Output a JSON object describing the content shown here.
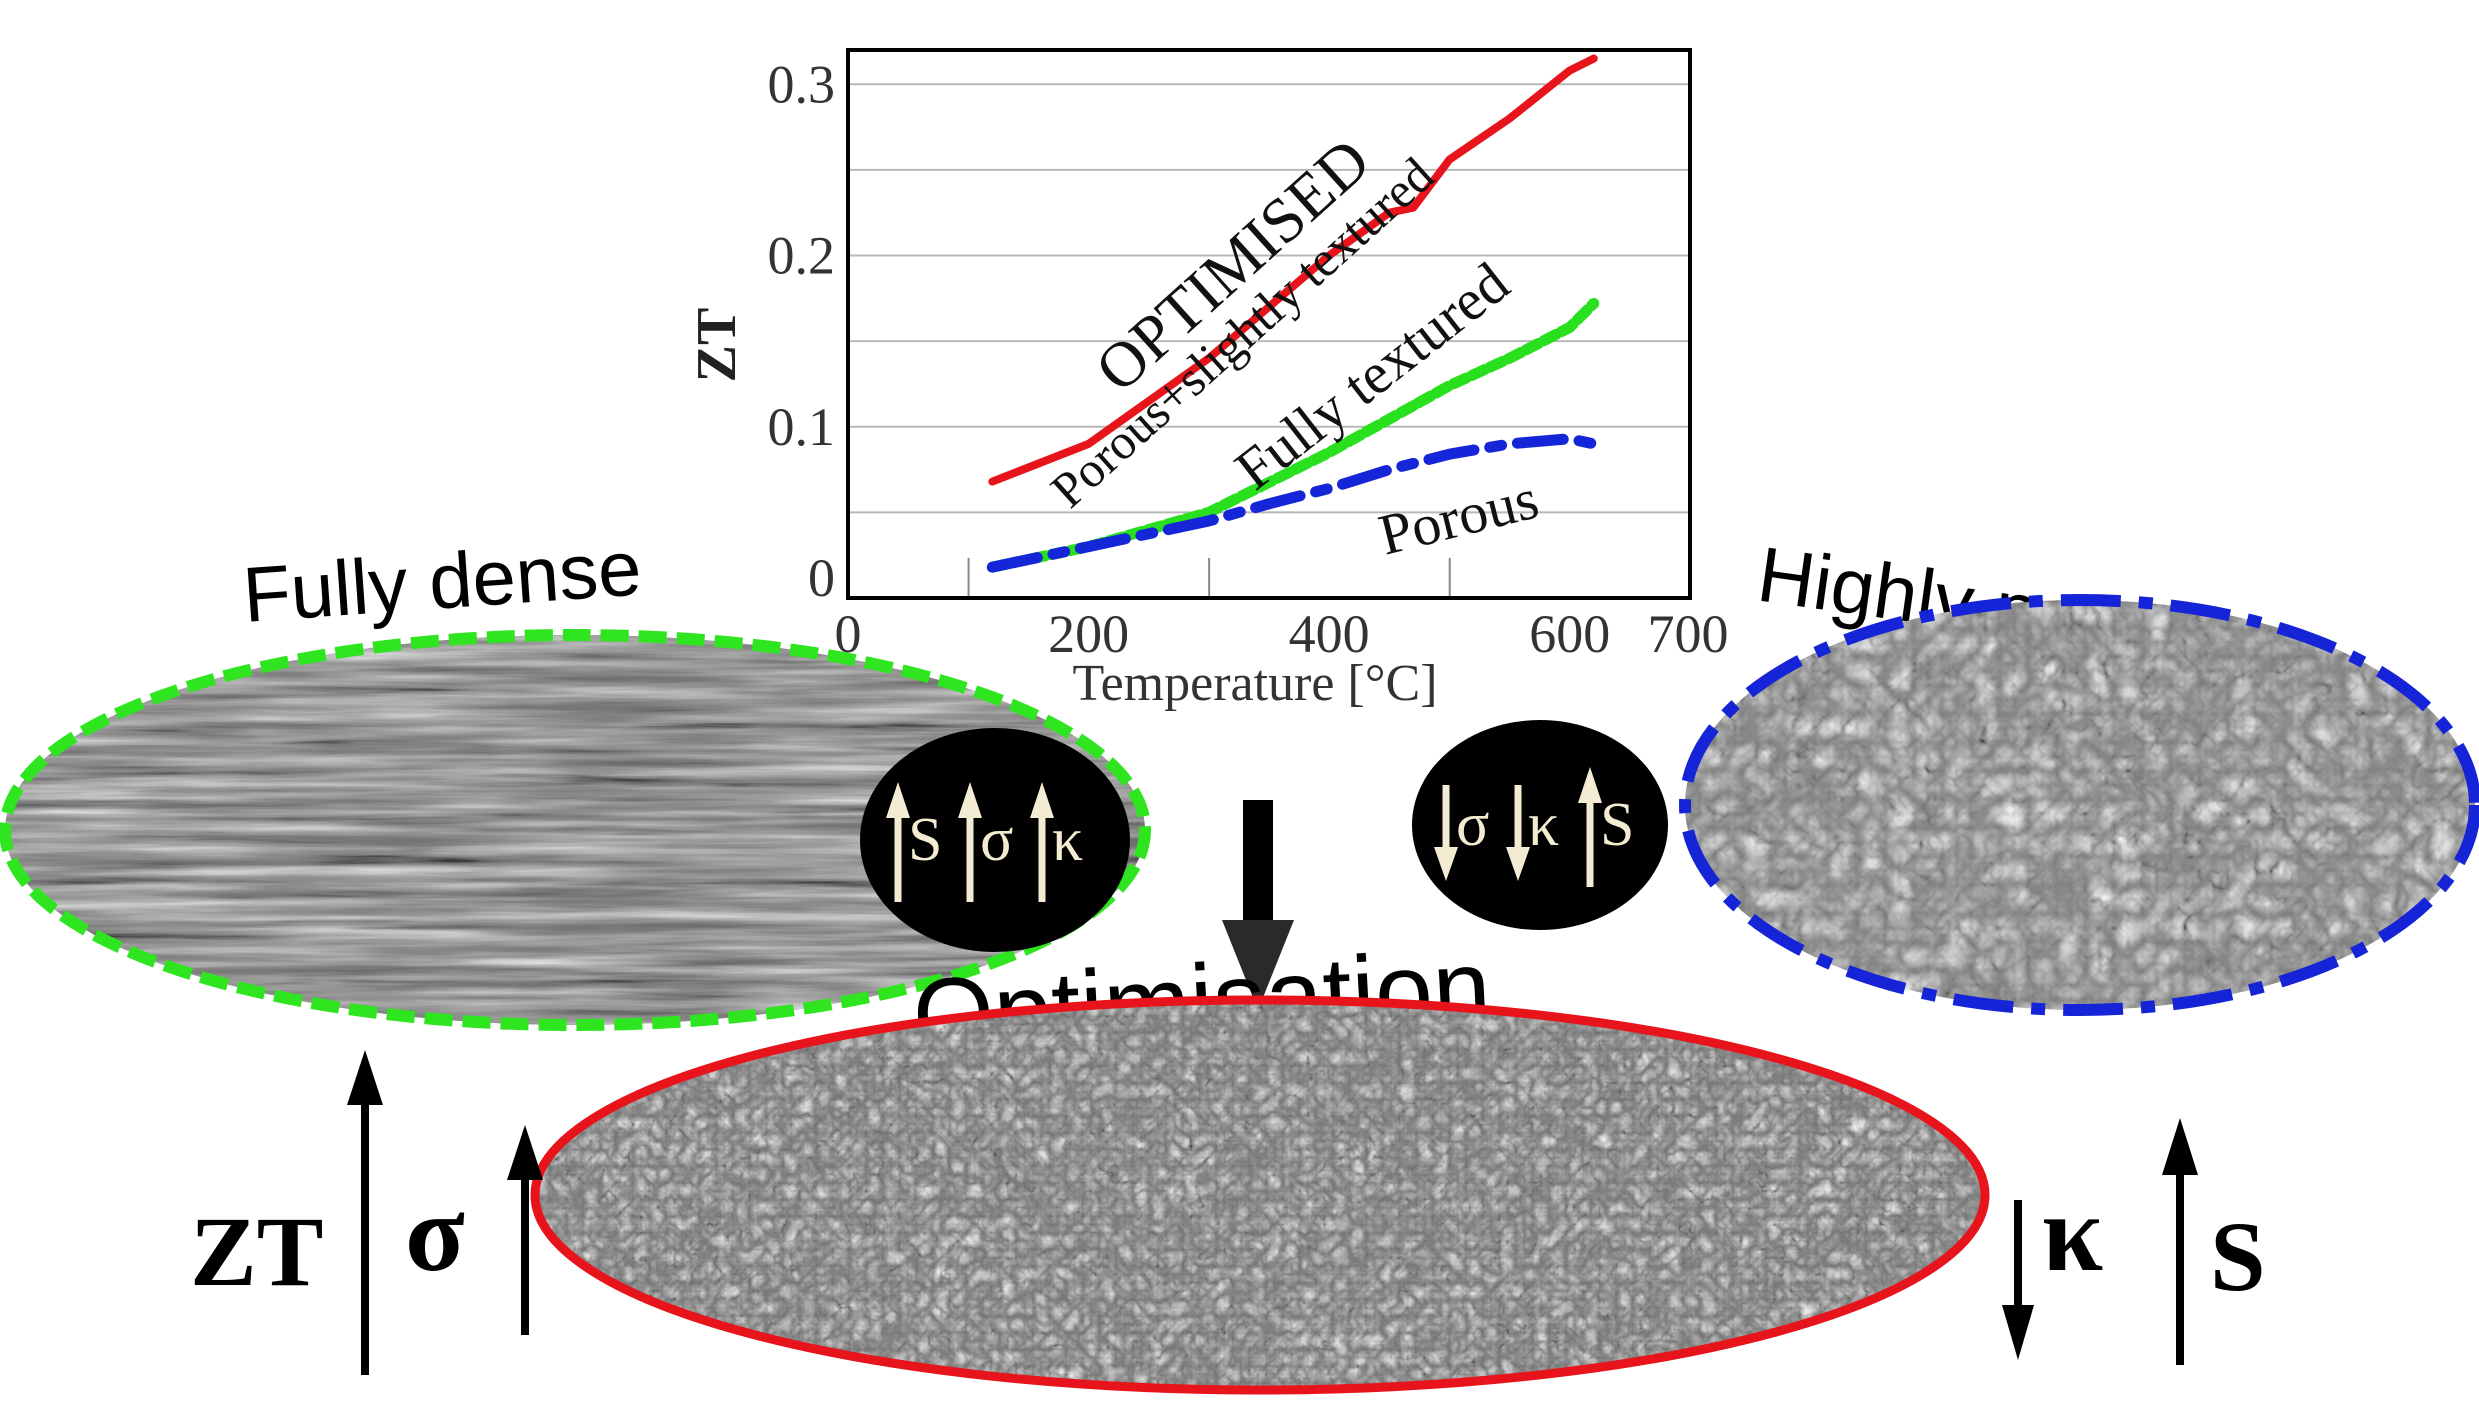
{
  "chart_data": {
    "type": "line",
    "xlabel": "Temperature [°C]",
    "ylabel": "ZT",
    "xlim": [
      0,
      700
    ],
    "ylim": [
      0,
      0.32
    ],
    "x_ticks": [
      "0",
      "200",
      "400",
      "600",
      "700"
    ],
    "y_ticks": [
      "0",
      "0.1",
      "0.2",
      "0.3"
    ],
    "grid": "horizontal",
    "series": [
      {
        "name": "OPTIMISED Porous+slightly textured",
        "color": "#e8141b",
        "style": "solid",
        "x": [
          120,
          200,
          300,
          350,
          400,
          450,
          470,
          500,
          550,
          600,
          620
        ],
        "y": [
          0.068,
          0.09,
          0.14,
          0.17,
          0.2,
          0.225,
          0.228,
          0.256,
          0.28,
          0.308,
          0.315
        ]
      },
      {
        "name": "Fully textured",
        "color": "#28e01e",
        "style": "dashed",
        "x": [
          120,
          200,
          300,
          400,
          500,
          550,
          600,
          620
        ],
        "y": [
          0.018,
          0.03,
          0.05,
          0.085,
          0.124,
          0.14,
          0.158,
          0.172
        ]
      },
      {
        "name": "Porous",
        "color": "#1525d8",
        "style": "dash-dot",
        "x": [
          120,
          200,
          300,
          350,
          400,
          450,
          500,
          550,
          600,
          620
        ],
        "y": [
          0.018,
          0.03,
          0.045,
          0.055,
          0.064,
          0.075,
          0.084,
          0.09,
          0.093,
          0.09
        ]
      }
    ],
    "annotations": [
      "OPTIMISED",
      "Porous+slightly textured",
      "Fully textured",
      "Porous"
    ]
  },
  "samples": {
    "fully_dense": {
      "title": "Fully dense",
      "border_color": "#2fe51f",
      "badge": [
        "S",
        "σ",
        "κ"
      ],
      "badge_arrows": [
        "up",
        "up",
        "up"
      ]
    },
    "highly_porous": {
      "title": "Highly porous",
      "border_color": "#1424d6",
      "badge": [
        "σ",
        "κ",
        "S"
      ],
      "badge_arrows": [
        "down",
        "down",
        "up"
      ]
    },
    "optimised": {
      "title": "Optimisation",
      "border_color": "#e8141b"
    }
  },
  "bottom_labels": {
    "zt": "ZT",
    "sigma": "σ",
    "kappa": "κ",
    "s": "S"
  },
  "icons": {
    "down_arrow": "down-arrow-icon",
    "up_arrow": "up-arrow-icon"
  }
}
